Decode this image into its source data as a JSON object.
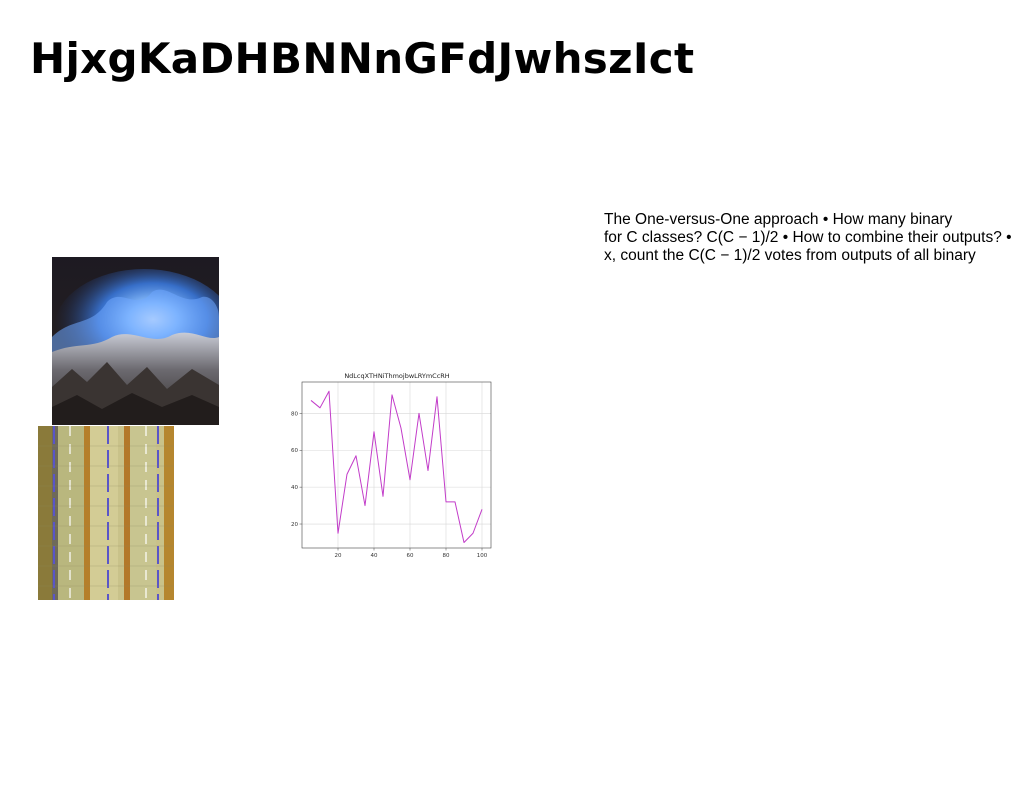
{
  "slide": {
    "title": "HjxgKaDHBNNnGFdJwhszIct",
    "body_lines": [
      "The One-versus-One approach • How many binary",
      "for C classes? C(C − 1)/2 • How to combine their outputs? •",
      "x, count the C(C − 1)/2 votes from outputs of all binary"
    ]
  },
  "images": {
    "flame": "blue-flame-photo",
    "stripes": "striped-material-photo"
  },
  "chart_data": {
    "type": "line",
    "title": "NdLcqXTHNiThmojbwLRYmCcRH",
    "xlabel": "",
    "ylabel": "",
    "x": [
      5,
      10,
      15,
      20,
      25,
      30,
      35,
      40,
      45,
      50,
      55,
      60,
      65,
      70,
      75,
      80,
      85,
      90,
      95,
      100
    ],
    "series": [
      {
        "values": [
          87,
          83,
          92,
          15,
          47,
          57,
          30,
          70,
          35,
          90,
          72,
          44,
          80,
          49,
          89,
          32,
          32,
          10,
          15,
          28
        ],
        "color": "#c23cc9"
      }
    ],
    "xticks": [
      20,
      40,
      60,
      80,
      100
    ],
    "yticks": [
      20,
      40,
      60,
      80
    ],
    "xlim": [
      0,
      105
    ],
    "ylim": [
      7,
      97
    ],
    "grid": true
  }
}
